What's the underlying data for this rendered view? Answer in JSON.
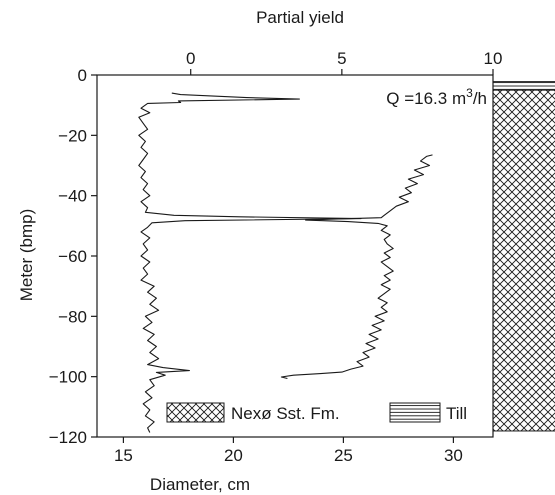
{
  "chart_data": {
    "type": "line",
    "top_axis": {
      "label": "Partial yield",
      "ticks": [
        0,
        5,
        10
      ],
      "range": [
        -3.1,
        10
      ]
    },
    "bottom_axis": {
      "label": "Diameter, cm",
      "ticks": [
        15,
        20,
        25,
        30
      ],
      "range": [
        13.8,
        31.8
      ]
    },
    "left_axis": {
      "label": "Meter (bmp)",
      "ticks": [
        0,
        -20,
        -40,
        -60,
        -80,
        -100,
        -120
      ],
      "range": [
        -120,
        0
      ]
    },
    "annotation": {
      "prefix": "Q =16.3 m",
      "superscript": "3",
      "suffix": "/h"
    },
    "legend": [
      {
        "label": "Nexø Sst. Fm.",
        "pattern": "crosshatch"
      },
      {
        "label": "Till",
        "pattern": "horizontal-lines"
      }
    ],
    "series": [
      {
        "axis": "bottom",
        "points": [
          [
            17.2,
            -6
          ],
          [
            17.6,
            -6.5
          ],
          [
            20.6,
            -7.5
          ],
          [
            23.0,
            -8.0
          ],
          [
            17.5,
            -8.6
          ],
          [
            17.6,
            -9.1
          ],
          [
            16.1,
            -9.4
          ],
          [
            15.8,
            -11
          ],
          [
            16.2,
            -12.5
          ],
          [
            15.7,
            -14
          ],
          [
            15.9,
            -16
          ],
          [
            16.1,
            -18
          ],
          [
            15.7,
            -20
          ],
          [
            16.0,
            -22
          ],
          [
            15.8,
            -24
          ],
          [
            16.1,
            -26
          ],
          [
            15.9,
            -28
          ],
          [
            15.7,
            -30
          ],
          [
            16.0,
            -32
          ],
          [
            15.8,
            -34
          ],
          [
            16.1,
            -36
          ],
          [
            15.9,
            -38
          ],
          [
            16.2,
            -40
          ],
          [
            15.8,
            -42
          ],
          [
            16.1,
            -44
          ],
          [
            16.0,
            -45.5
          ],
          [
            17.3,
            -46.5
          ],
          [
            20.3,
            -47
          ],
          [
            25.8,
            -47.6
          ],
          [
            17.8,
            -48.3
          ],
          [
            16.3,
            -49
          ],
          [
            16.1,
            -50.5
          ],
          [
            15.8,
            -52
          ],
          [
            16.2,
            -54
          ],
          [
            15.9,
            -56
          ],
          [
            16.1,
            -58
          ],
          [
            15.8,
            -60
          ],
          [
            16.2,
            -62
          ],
          [
            15.9,
            -64
          ],
          [
            16.1,
            -66
          ],
          [
            15.8,
            -68
          ],
          [
            16.4,
            -70
          ],
          [
            16.1,
            -72
          ],
          [
            16.5,
            -74
          ],
          [
            16.2,
            -76
          ],
          [
            16.6,
            -78
          ],
          [
            16.0,
            -80
          ],
          [
            16.3,
            -82
          ],
          [
            15.9,
            -84
          ],
          [
            16.4,
            -86
          ],
          [
            16.1,
            -88
          ],
          [
            16.5,
            -90
          ],
          [
            16.2,
            -92
          ],
          [
            16.6,
            -94
          ],
          [
            16.1,
            -96
          ],
          [
            16.8,
            -97
          ],
          [
            18.0,
            -98
          ],
          [
            16.5,
            -98.6
          ],
          [
            16.9,
            -99.5
          ],
          [
            16.2,
            -101
          ],
          [
            16.4,
            -103
          ],
          [
            16.0,
            -105
          ],
          [
            16.3,
            -107
          ],
          [
            15.9,
            -109
          ],
          [
            16.2,
            -111
          ],
          [
            16.0,
            -113
          ],
          [
            16.4,
            -115
          ],
          [
            16.1,
            -117
          ],
          [
            16.2,
            -118.5
          ]
        ]
      },
      {
        "axis": "top",
        "points": [
          [
            8.0,
            -26.5
          ],
          [
            7.8,
            -27
          ],
          [
            7.6,
            -28.5
          ],
          [
            7.9,
            -30
          ],
          [
            7.4,
            -31.5
          ],
          [
            7.7,
            -33
          ],
          [
            7.2,
            -34.5
          ],
          [
            7.5,
            -36
          ],
          [
            7.1,
            -37.5
          ],
          [
            7.3,
            -39
          ],
          [
            6.9,
            -40.5
          ],
          [
            7.2,
            -42
          ],
          [
            6.8,
            -43.5
          ],
          [
            6.6,
            -45
          ],
          [
            6.4,
            -46.5
          ],
          [
            6.3,
            -47.3
          ],
          [
            4.6,
            -47.8
          ],
          [
            3.8,
            -48.1
          ],
          [
            5.2,
            -48.6
          ],
          [
            6.2,
            -49.2
          ],
          [
            6.5,
            -50
          ],
          [
            6.3,
            -51.5
          ],
          [
            6.6,
            -53
          ],
          [
            6.4,
            -54.5
          ],
          [
            6.5,
            -56
          ],
          [
            6.7,
            -57.5
          ],
          [
            6.4,
            -59
          ],
          [
            6.6,
            -60.5
          ],
          [
            6.3,
            -62
          ],
          [
            6.5,
            -63.5
          ],
          [
            6.7,
            -65
          ],
          [
            6.4,
            -66.5
          ],
          [
            6.6,
            -68
          ],
          [
            6.3,
            -69.5
          ],
          [
            6.6,
            -71
          ],
          [
            6.4,
            -72.5
          ],
          [
            6.2,
            -74
          ],
          [
            6.5,
            -75.5
          ],
          [
            6.3,
            -77
          ],
          [
            6.5,
            -78.5
          ],
          [
            6.1,
            -80
          ],
          [
            6.4,
            -81.5
          ],
          [
            6.0,
            -83
          ],
          [
            6.3,
            -84.5
          ],
          [
            5.9,
            -86
          ],
          [
            6.2,
            -87.5
          ],
          [
            5.8,
            -89
          ],
          [
            6.1,
            -90.5
          ],
          [
            5.7,
            -92
          ],
          [
            5.9,
            -93.5
          ],
          [
            5.5,
            -95
          ],
          [
            5.7,
            -96.5
          ],
          [
            5.3,
            -97.5
          ],
          [
            5.0,
            -98.5
          ],
          [
            4.3,
            -99
          ],
          [
            3.4,
            -99.5
          ],
          [
            3.0,
            -100.1
          ],
          [
            3.2,
            -100.6
          ]
        ]
      }
    ]
  }
}
